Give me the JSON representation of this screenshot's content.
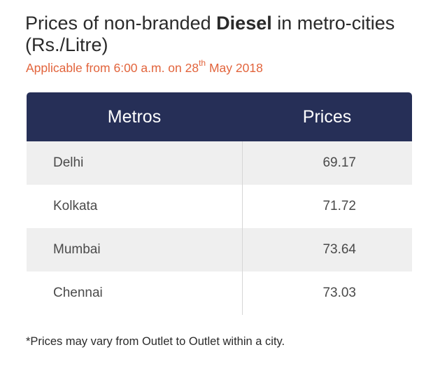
{
  "header": {
    "title_prefix": "Prices of non-branded ",
    "title_bold": "Diesel",
    "title_suffix": " in metro-cities (Rs./Litre)",
    "subtitle_prefix": "Applicable from 6:00 a.m. on 28",
    "subtitle_sup": "th",
    "subtitle_suffix": " May 2018"
  },
  "table": {
    "columns": [
      "Metros",
      "Prices"
    ],
    "rows": [
      {
        "city": "Delhi",
        "price": "69.17"
      },
      {
        "city": "Kolkata",
        "price": "71.72"
      },
      {
        "city": "Mumbai",
        "price": "73.64"
      },
      {
        "city": "Chennai",
        "price": "73.03"
      }
    ]
  },
  "footnote": "*Prices may vary from Outlet to Outlet within a city.",
  "colors": {
    "header_bg": "#262f57",
    "subtitle": "#e2643c",
    "stripe": "#efefef"
  }
}
